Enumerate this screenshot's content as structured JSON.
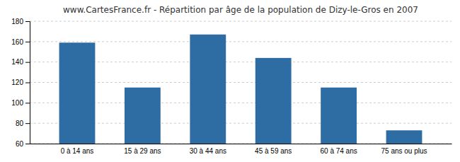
{
  "chart_data": {
    "type": "bar",
    "title": "www.CartesFrance.fr - Répartition par âge de la population de Dizy-le-Gros en 2007",
    "categories": [
      "0 à 14 ans",
      "15 à 29 ans",
      "30 à 44 ans",
      "45 à 59 ans",
      "60 à 74 ans",
      "75 ans ou plus"
    ],
    "values": [
      159,
      115,
      167,
      144,
      115,
      73
    ],
    "color": "#2e6da4",
    "ylim": [
      60,
      180
    ],
    "yticks": [
      60,
      80,
      100,
      120,
      140,
      160,
      180
    ],
    "grid": true
  }
}
